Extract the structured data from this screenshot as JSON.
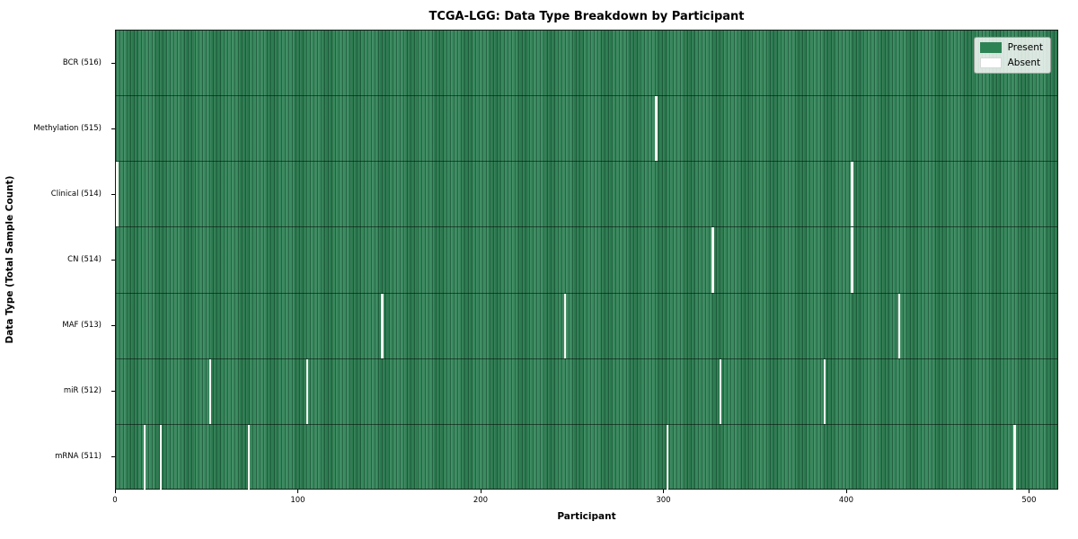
{
  "chart_data": {
    "type": "heatmap",
    "title": "TCGA-LGG: Data Type Breakdown by Participant",
    "xlabel": "Participant",
    "ylabel": "Data Type (Total Sample Count)",
    "x_ticks": [
      0,
      100,
      200,
      300,
      400,
      500
    ],
    "xlim": [
      0,
      516
    ],
    "n_participants": 516,
    "grid": false,
    "legend_position": "upper right",
    "colors": {
      "present": "#2e8355",
      "absent": "#ffffff",
      "row_divider": "rgba(0,0,0,0.5)"
    },
    "legend": [
      {
        "label": "Present",
        "color": "#2e8355"
      },
      {
        "label": "Absent",
        "color": "#ffffff"
      }
    ],
    "rows": [
      {
        "label": "BCR (516)",
        "data_type": "BCR",
        "total_samples": 516,
        "absent_participants": []
      },
      {
        "label": "Methylation (515)",
        "data_type": "Methylation",
        "total_samples": 515,
        "absent_participants": [
          295
        ]
      },
      {
        "label": "Clinical (514)",
        "data_type": "Clinical",
        "total_samples": 514,
        "absent_participants": [
          0,
          402
        ]
      },
      {
        "label": "CN (514)",
        "data_type": "CN",
        "total_samples": 514,
        "absent_participants": [
          326,
          402
        ]
      },
      {
        "label": "MAF (513)",
        "data_type": "MAF",
        "total_samples": 513,
        "absent_participants": [
          145,
          245,
          428
        ]
      },
      {
        "label": "miR (512)",
        "data_type": "miR",
        "total_samples": 512,
        "absent_participants": [
          51,
          104,
          330,
          387
        ]
      },
      {
        "label": "mRNA (511)",
        "data_type": "mRNA",
        "total_samples": 511,
        "absent_participants": [
          15,
          24,
          72,
          301,
          491
        ]
      }
    ]
  }
}
